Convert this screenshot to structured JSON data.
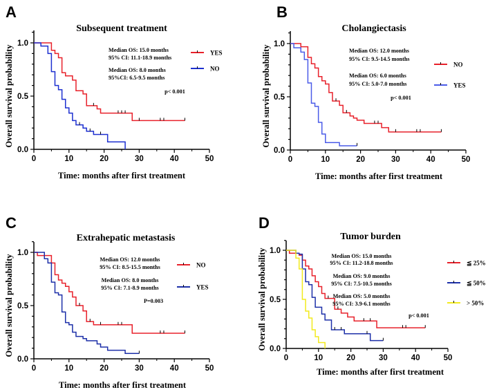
{
  "chart_data": [
    {
      "type": "line",
      "panel_label": "A",
      "title": "Subsequent treatment",
      "xlabel": "Time: months after first treatment",
      "ylabel": "Overall survival probability",
      "xlim": [
        0,
        50
      ],
      "ylim": [
        0,
        1
      ],
      "xticks": [
        "0",
        "10",
        "20",
        "30",
        "40",
        "50"
      ],
      "yticks": [
        "0.0",
        "0.5",
        "1.0"
      ],
      "grid": false,
      "legend_placement": "right",
      "annotations": [
        "Median OS: 15.0 months",
        "95% CI: 11.1-18.9 months",
        "Median OS: 8.0 months",
        "95%CI: 6.5-9.5 months",
        "p< 0.001"
      ],
      "series": [
        {
          "name": "YES",
          "color": "#e8202a",
          "steps": [
            [
              0,
              1
            ],
            [
              5,
              0.93
            ],
            [
              6,
              0.9
            ],
            [
              7,
              0.86
            ],
            [
              8,
              0.72
            ],
            [
              9,
              0.69
            ],
            [
              11,
              0.65
            ],
            [
              12,
              0.55
            ],
            [
              14,
              0.52
            ],
            [
              15,
              0.41
            ],
            [
              18,
              0.38
            ],
            [
              19,
              0.34
            ],
            [
              28,
              0.27
            ]
          ],
          "end": 43,
          "censored": [
            17,
            24,
            25,
            26,
            30,
            36,
            37,
            43
          ]
        },
        {
          "name": "NO",
          "color": "#1c2fd0",
          "steps": [
            [
              0,
              1
            ],
            [
              2,
              0.97
            ],
            [
              4,
              0.9
            ],
            [
              5,
              0.73
            ],
            [
              6,
              0.6
            ],
            [
              7,
              0.56
            ],
            [
              8,
              0.47
            ],
            [
              9,
              0.39
            ],
            [
              10,
              0.34
            ],
            [
              11,
              0.27
            ],
            [
              12,
              0.23
            ],
            [
              14,
              0.2
            ],
            [
              15,
              0.17
            ],
            [
              17,
              0.14
            ],
            [
              21,
              0.07
            ],
            [
              26,
              0
            ]
          ],
          "end": 26,
          "censored": [
            13,
            16,
            19
          ]
        }
      ]
    },
    {
      "type": "line",
      "panel_label": "B",
      "title": "Cholangiectasis",
      "xlabel": "Time: months after first treatment",
      "ylabel": "Overall survival probability",
      "xlim": [
        0,
        50
      ],
      "ylim": [
        0,
        1
      ],
      "xticks": [
        "0",
        "10",
        "20",
        "30",
        "40",
        "50"
      ],
      "yticks": [
        "0.0",
        "0.5",
        "1.0"
      ],
      "grid": false,
      "legend_placement": "right",
      "annotations": [
        "Median OS: 12.0 months",
        "95% CI: 9.5-14.5 months",
        "Median OS: 6.0 months",
        "95% CI: 5.0-7.0 months",
        "p< 0.001"
      ],
      "series": [
        {
          "name": "NO",
          "color": "#e8202a",
          "steps": [
            [
              0,
              1
            ],
            [
              3,
              0.97
            ],
            [
              5,
              0.87
            ],
            [
              6,
              0.81
            ],
            [
              7,
              0.77
            ],
            [
              8,
              0.69
            ],
            [
              9,
              0.65
            ],
            [
              10,
              0.62
            ],
            [
              11,
              0.54
            ],
            [
              12,
              0.46
            ],
            [
              14,
              0.42
            ],
            [
              15,
              0.35
            ],
            [
              17,
              0.32
            ],
            [
              18,
              0.3
            ],
            [
              19,
              0.28
            ],
            [
              21,
              0.25
            ],
            [
              26,
              0.21
            ],
            [
              28,
              0.17
            ]
          ],
          "end": 43,
          "censored": [
            13,
            16,
            24,
            25,
            30,
            36,
            37,
            43
          ]
        },
        {
          "name": "YES",
          "color": "#4a5be8",
          "steps": [
            [
              0,
              1
            ],
            [
              1,
              0.96
            ],
            [
              3,
              0.92
            ],
            [
              4,
              0.85
            ],
            [
              5,
              0.63
            ],
            [
              6,
              0.44
            ],
            [
              7,
              0.41
            ],
            [
              8,
              0.26
            ],
            [
              9,
              0.15
            ],
            [
              10,
              0.07
            ],
            [
              14,
              0.04
            ]
          ],
          "end": 19,
          "censored": [
            19
          ]
        }
      ]
    },
    {
      "type": "line",
      "panel_label": "C",
      "title": "Extrahepatic metastasis",
      "xlabel": "Time: months after first treatment",
      "ylabel": "Overall survival probability",
      "xlim": [
        0,
        50
      ],
      "ylim": [
        0,
        1
      ],
      "xticks": [
        "0",
        "10",
        "20",
        "30",
        "40",
        "50"
      ],
      "yticks": [
        "0.0",
        "0.5",
        "1.0"
      ],
      "grid": false,
      "legend_placement": "right",
      "annotations": [
        "Median OS: 12.0 months",
        "95% CI: 8.5-15.5 months",
        "Median OS: 8.0 months",
        "95% CI: 7.1-8.9 months",
        "P=0.003"
      ],
      "series": [
        {
          "name": "NO",
          "color": "#e8202a",
          "steps": [
            [
              0,
              1
            ],
            [
              1,
              0.97
            ],
            [
              5,
              0.9
            ],
            [
              6,
              0.79
            ],
            [
              7,
              0.74
            ],
            [
              8,
              0.71
            ],
            [
              9,
              0.68
            ],
            [
              10,
              0.63
            ],
            [
              11,
              0.58
            ],
            [
              12,
              0.5
            ],
            [
              14,
              0.45
            ],
            [
              15,
              0.35
            ],
            [
              17,
              0.32
            ],
            [
              28,
              0.24
            ]
          ],
          "end": 43,
          "censored": [
            13,
            16,
            19,
            24,
            25,
            36,
            37,
            43
          ]
        },
        {
          "name": "YES",
          "color": "#1c2fa8",
          "steps": [
            [
              0,
              1
            ],
            [
              3,
              0.94
            ],
            [
              4,
              0.9
            ],
            [
              5,
              0.72
            ],
            [
              6,
              0.62
            ],
            [
              7,
              0.6
            ],
            [
              8,
              0.44
            ],
            [
              9,
              0.34
            ],
            [
              10,
              0.32
            ],
            [
              11,
              0.25
            ],
            [
              12,
              0.21
            ],
            [
              14,
              0.19
            ],
            [
              15,
              0.17
            ],
            [
              18,
              0.14
            ],
            [
              19,
              0.11
            ],
            [
              21,
              0.08
            ],
            [
              26,
              0.05
            ]
          ],
          "end": 30,
          "censored": [
            30
          ]
        }
      ]
    },
    {
      "type": "line",
      "panel_label": "D",
      "title": "Tumor burden",
      "xlabel": "Time: months after first treatment",
      "ylabel": "Overall survival probability",
      "xlim": [
        0,
        50
      ],
      "ylim": [
        0,
        1
      ],
      "xticks": [
        "0",
        "10",
        "20",
        "30",
        "40",
        "50"
      ],
      "yticks": [
        "0.0",
        "0.5",
        "1.0"
      ],
      "grid": false,
      "legend_placement": "right",
      "annotations": [
        "Median OS: 15.0 months",
        "95% CI: 11.2-18.8 months",
        "Median OS: 9.0 months",
        "95% CI: 7.5-10.5 months",
        "Median OS: 5.0 months",
        "95% CI: 3.9-6.1 months",
        "p< 0.001"
      ],
      "series": [
        {
          "name": "≦ 25%",
          "color": "#e8202a",
          "steps": [
            [
              0,
              1
            ],
            [
              1,
              0.97
            ],
            [
              4,
              0.95
            ],
            [
              5,
              0.9
            ],
            [
              6,
              0.84
            ],
            [
              7,
              0.81
            ],
            [
              8,
              0.74
            ],
            [
              9,
              0.68
            ],
            [
              10,
              0.63
            ],
            [
              11,
              0.56
            ],
            [
              12,
              0.51
            ],
            [
              15,
              0.4
            ],
            [
              17,
              0.36
            ],
            [
              19,
              0.32
            ],
            [
              21,
              0.28
            ],
            [
              28,
              0.21
            ]
          ],
          "end": 43,
          "censored": [
            13,
            16,
            24,
            26,
            36,
            37,
            43
          ]
        },
        {
          "name": "≦ 50%",
          "color": "#1c2fa8",
          "steps": [
            [
              0,
              1
            ],
            [
              3,
              0.97
            ],
            [
              4,
              0.96
            ],
            [
              5,
              0.81
            ],
            [
              6,
              0.68
            ],
            [
              7,
              0.65
            ],
            [
              8,
              0.52
            ],
            [
              9,
              0.42
            ],
            [
              11,
              0.35
            ],
            [
              12,
              0.29
            ],
            [
              14,
              0.19
            ],
            [
              18,
              0.15
            ],
            [
              26,
              0.08
            ]
          ],
          "end": 30,
          "censored": [
            15,
            17,
            25,
            30
          ]
        },
        {
          "name": "> 50%",
          "color": "#f2ea1c",
          "steps": [
            [
              0,
              1
            ],
            [
              3,
              0.92
            ],
            [
              4,
              0.81
            ],
            [
              5,
              0.5
            ],
            [
              6,
              0.38
            ],
            [
              7,
              0.31
            ],
            [
              8,
              0.19
            ],
            [
              9,
              0.12
            ],
            [
              10,
              0.06
            ],
            [
              12,
              0
            ]
          ],
          "end": 12,
          "censored": []
        }
      ]
    }
  ]
}
